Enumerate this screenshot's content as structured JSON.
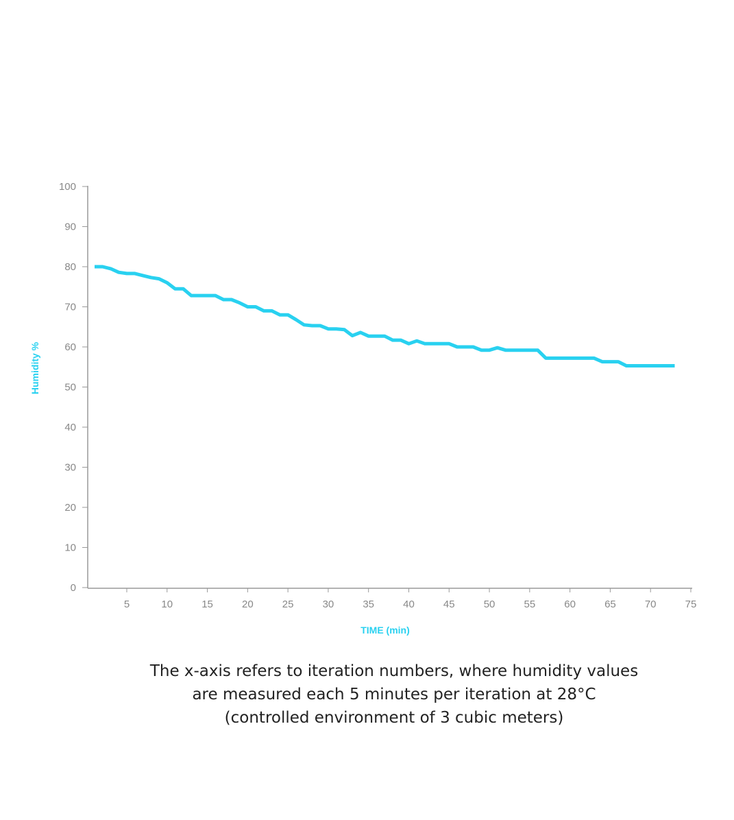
{
  "chart_data": {
    "type": "line",
    "title": "",
    "xlabel": "TIME (min)",
    "ylabel": "Humidity %",
    "xlim": [
      0,
      75
    ],
    "ylim": [
      0,
      100
    ],
    "xticks": [
      5,
      10,
      15,
      20,
      25,
      30,
      35,
      40,
      45,
      50,
      55,
      60,
      65,
      70,
      75
    ],
    "yticks": [
      0,
      10,
      20,
      30,
      40,
      50,
      60,
      70,
      80,
      90,
      100
    ],
    "grid": false,
    "color": "#29d1f0",
    "series": [
      {
        "name": "Humidity",
        "x": [
          1,
          2,
          3,
          4,
          5,
          6,
          7,
          8,
          9,
          10,
          11,
          12,
          13,
          14,
          15,
          16,
          17,
          18,
          19,
          20,
          21,
          22,
          23,
          24,
          25,
          26,
          27,
          28,
          29,
          30,
          31,
          32,
          33,
          34,
          35,
          36,
          37,
          38,
          39,
          40,
          41,
          42,
          43,
          44,
          45,
          46,
          47,
          48,
          49,
          50,
          51,
          52,
          53,
          54,
          55,
          56,
          57,
          58,
          59,
          60,
          61,
          62,
          63,
          64,
          65,
          66,
          67,
          68,
          69,
          70,
          71,
          72,
          73
        ],
        "values": [
          80,
          80,
          79.5,
          78.6,
          78.3,
          78.3,
          77.8,
          77.3,
          77,
          76,
          74.5,
          74.5,
          72.8,
          72.8,
          72.8,
          72.8,
          71.8,
          71.8,
          71,
          70,
          70,
          69,
          69,
          68,
          68,
          66.8,
          65.5,
          65.3,
          65.3,
          64.5,
          64.5,
          64.3,
          62.8,
          63.6,
          62.7,
          62.7,
          62.7,
          61.7,
          61.7,
          60.8,
          61.5,
          60.8,
          60.8,
          60.8,
          60.8,
          60,
          60,
          60,
          59.2,
          59.2,
          59.8,
          59.2,
          59.2,
          59.2,
          59.2,
          59.2,
          57.2,
          57.2,
          57.2,
          57.2,
          57.2,
          57.2,
          57.2,
          56.3,
          56.3,
          56.3,
          55.3,
          55.3,
          55.3,
          55.3,
          55.3,
          55.3,
          55.3
        ]
      }
    ]
  },
  "caption": [
    "The x-axis refers to iteration numbers, where humidity values",
    "are measured each 5 minutes per iteration at 28°C",
    "(controlled environment of 3 cubic meters)"
  ]
}
